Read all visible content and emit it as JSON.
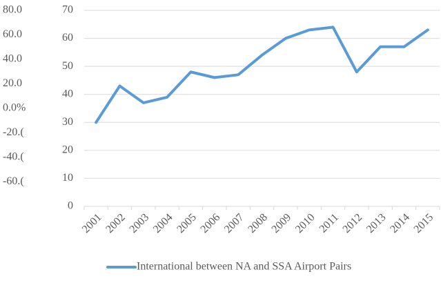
{
  "chart_data": {
    "type": "line",
    "categories": [
      "2001",
      "2002",
      "2003",
      "2004",
      "2005",
      "2006",
      "2007",
      "2008",
      "2009",
      "2010",
      "2011",
      "2012",
      "2013",
      "2014",
      "2015"
    ],
    "series": [
      {
        "name": "International between NA and SSA Airport Pairs",
        "color": "#5b9bd5",
        "values": [
          30,
          43,
          37,
          39,
          48,
          46,
          47,
          54,
          60,
          63,
          64,
          48,
          57,
          57,
          63
        ]
      }
    ],
    "ylim": [
      0,
      70
    ],
    "yticks": [
      0,
      10,
      20,
      30,
      40,
      50,
      60,
      70
    ],
    "y2lim": [
      -80,
      80
    ],
    "y2ticks": [
      {
        "value": 80,
        "label": "80.0"
      },
      {
        "value": 60,
        "label": "60.0"
      },
      {
        "value": 40,
        "label": "40.0"
      },
      {
        "value": 20,
        "label": "20.0"
      },
      {
        "value": 0,
        "label": "0.0%"
      },
      {
        "value": -20,
        "label": "-20.("
      },
      {
        "value": -40,
        "label": "-40.("
      },
      {
        "value": -60,
        "label": "-60.("
      }
    ],
    "grid": true,
    "legend": "bottom"
  }
}
